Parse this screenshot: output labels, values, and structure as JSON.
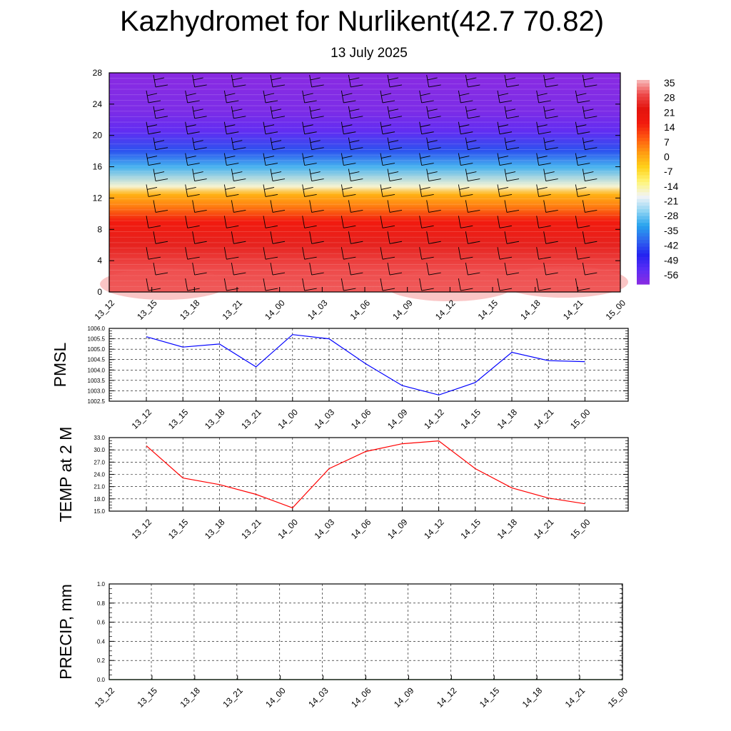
{
  "header": {
    "title": "Kazhydromet for Nurlikent(42.7 70.82)",
    "subtitle": "13 July 2025"
  },
  "chart_data": [
    {
      "type": "heatmap",
      "name": "temperature-wind-profile",
      "x_categories": [
        "13_12",
        "13_15",
        "13_18",
        "13_21",
        "14_00",
        "14_03",
        "14_06",
        "14_09",
        "14_12",
        "14_15",
        "14_18",
        "14_21",
        "15_00"
      ],
      "yticks": [
        0,
        4,
        8,
        12,
        16,
        20,
        24,
        28
      ],
      "ylim": [
        0,
        28
      ],
      "colorbar_labels": [
        "35",
        "28",
        "21",
        "14",
        "7",
        "0",
        "-7",
        "-14",
        "-21",
        "-28",
        "-35",
        "-42",
        "-49",
        "-56"
      ],
      "colorbar_range": [
        -60,
        38
      ],
      "colorscale": [
        "#8a2be2",
        "#5a2df5",
        "#2424f0",
        "#2f66ee",
        "#27a3ee",
        "#8fd4f3",
        "#f2f4f7",
        "#fff57a",
        "#ffd21a",
        "#ff9c12",
        "#ff5a10",
        "#f21a0e",
        "#e3140e",
        "#ee4a4a",
        "#f7bcbc"
      ],
      "profile": [
        {
          "level": 0,
          "value": 32
        },
        {
          "level": 3,
          "value": 31
        },
        {
          "level": 6,
          "value": 26
        },
        {
          "level": 9,
          "value": 17
        },
        {
          "level": 11,
          "value": 6
        },
        {
          "level": 12.5,
          "value": 0
        },
        {
          "level": 13.5,
          "value": -16
        },
        {
          "level": 16,
          "value": -30
        },
        {
          "level": 18,
          "value": -41
        },
        {
          "level": 20.5,
          "value": -54
        },
        {
          "level": 23,
          "value": -58
        },
        {
          "level": 28,
          "value": -60
        }
      ],
      "wind_barbs": "present at every time step and level"
    },
    {
      "type": "line",
      "name": "PMSL",
      "ylabel": "PMSL",
      "categories": [
        "13_12",
        "13_15",
        "13_18",
        "13_21",
        "14_00",
        "14_03",
        "14_06",
        "14_09",
        "14_12",
        "14_15",
        "14_18",
        "14_21",
        "15_00"
      ],
      "yticks": [
        "1002.5",
        "1003.0",
        "1003.5",
        "1004.0",
        "1004.5",
        "1005.0",
        "1005.5",
        "1006.0"
      ],
      "ylim": [
        1002.5,
        1006.0
      ],
      "grid": true,
      "series": [
        {
          "color": "#0000ff",
          "values": [
            1005.6,
            1005.1,
            1005.25,
            1004.15,
            1005.7,
            1005.5,
            1004.3,
            1003.25,
            1002.8,
            1003.4,
            1004.85,
            1004.45,
            1004.4
          ]
        }
      ]
    },
    {
      "type": "line",
      "name": "TEMP",
      "ylabel": "TEMP at 2 M",
      "categories": [
        "13_12",
        "13_15",
        "13_18",
        "13_21",
        "14_00",
        "14_03",
        "14_06",
        "14_09",
        "14_12",
        "14_15",
        "14_18",
        "14_21",
        "15_00"
      ],
      "yticks": [
        "15.0",
        "18.0",
        "21.0",
        "24.0",
        "27.0",
        "30.0",
        "33.0"
      ],
      "ylim": [
        15.0,
        33.0
      ],
      "grid": true,
      "series": [
        {
          "color": "#ff0000",
          "values": [
            31.0,
            23.1,
            21.5,
            19.1,
            15.8,
            25.4,
            29.6,
            31.5,
            32.2,
            25.4,
            20.7,
            18.2,
            16.8
          ]
        }
      ]
    },
    {
      "type": "line",
      "name": "PRECIP",
      "ylabel": "PRECIP, mm",
      "categories": [
        "13_12",
        "13_15",
        "13_18",
        "13_21",
        "14_00",
        "14_03",
        "14_06",
        "14_09",
        "14_12",
        "14_15",
        "14_18",
        "14_21",
        "15_00"
      ],
      "yticks": [
        "0.0",
        "0.2",
        "0.4",
        "0.6",
        "0.8",
        "1.0"
      ],
      "ylim": [
        0.0,
        1.0
      ],
      "grid": true,
      "series": [
        {
          "color": "#0a7a0a",
          "values": [
            0,
            0,
            0,
            0,
            0,
            0,
            0,
            0,
            0,
            0,
            0,
            0,
            0
          ]
        }
      ]
    }
  ]
}
